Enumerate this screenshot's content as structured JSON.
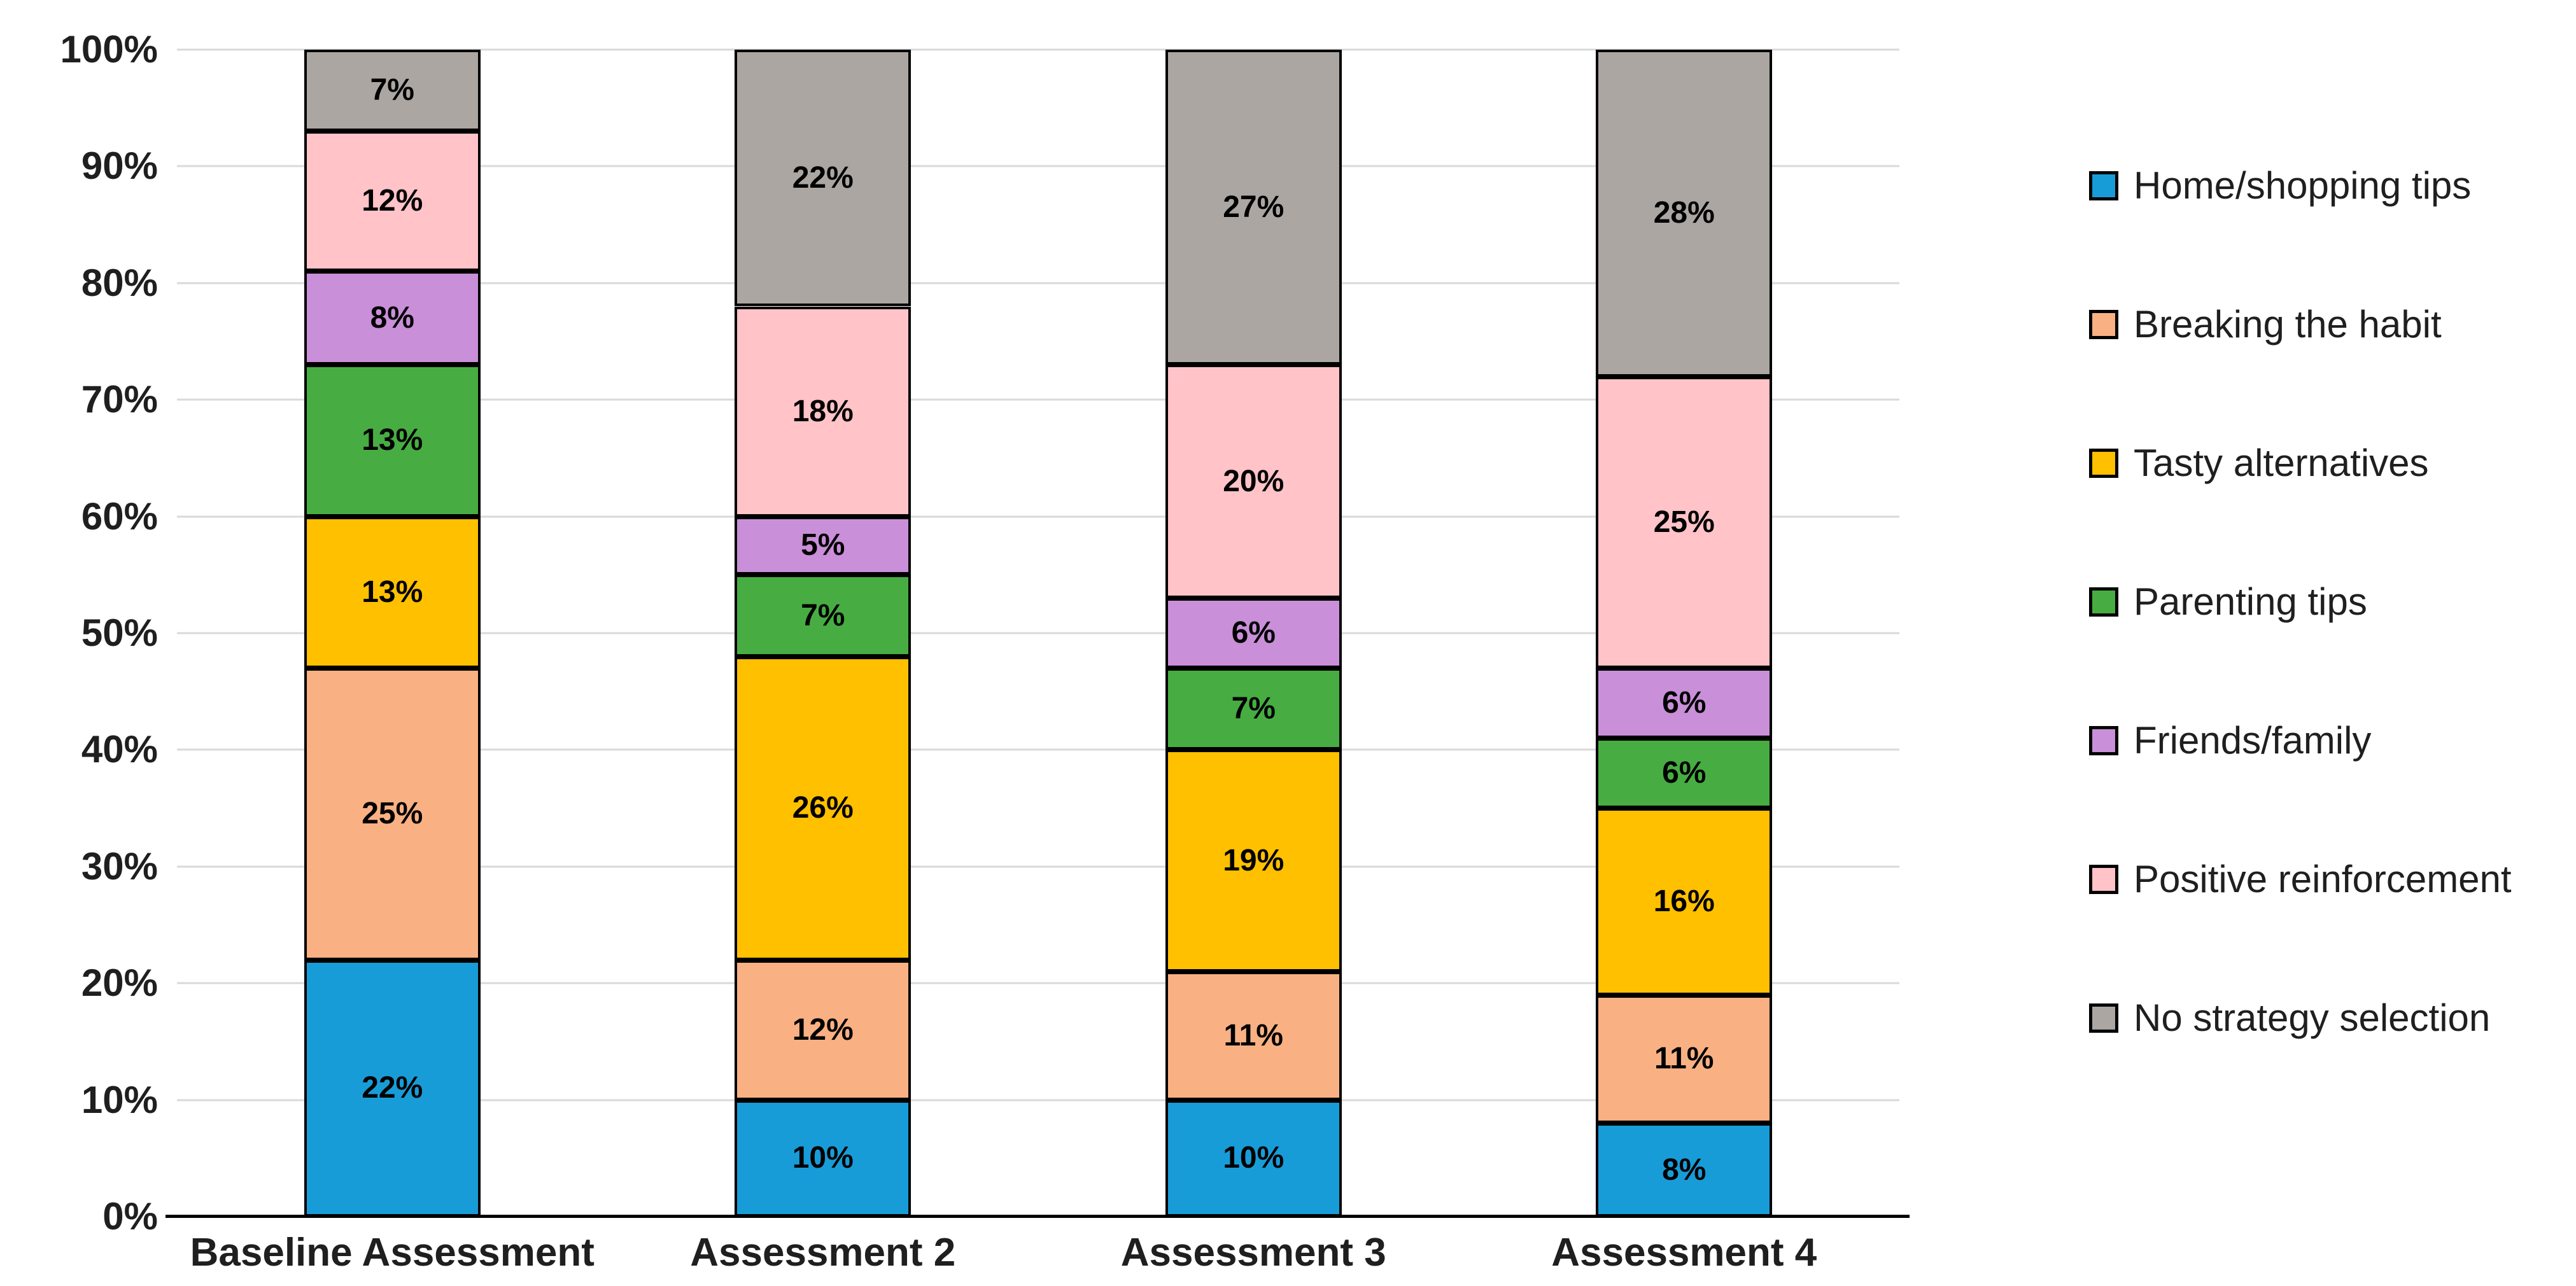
{
  "chart_data": {
    "type": "bar",
    "stacking": "percent",
    "title": "",
    "categories": [
      "Baseline Assessment",
      "Assessment 2",
      "Assessment 3",
      "Assessment 4"
    ],
    "series": [
      {
        "name": "Home/shopping tips",
        "color": "#189CD8",
        "values": [
          22,
          10,
          10,
          8
        ],
        "labels": [
          "22%",
          "10%",
          "10%",
          "8%"
        ]
      },
      {
        "name": "Breaking the habit",
        "color": "#F9B183",
        "values": [
          25,
          12,
          11,
          11
        ],
        "labels": [
          "25%",
          "12%",
          "11%",
          "11%"
        ]
      },
      {
        "name": "Tasty alternatives",
        "color": "#FFC000",
        "values": [
          13,
          26,
          19,
          16
        ],
        "labels": [
          "13%",
          "26%",
          "19%",
          "16%"
        ]
      },
      {
        "name": "Parenting tips",
        "color": "#47AD42",
        "values": [
          13,
          7,
          7,
          6
        ],
        "labels": [
          "13%",
          "7%",
          "7%",
          "6%"
        ]
      },
      {
        "name": "Friends/family",
        "color": "#C98FD9",
        "values": [
          8,
          5,
          6,
          6
        ],
        "labels": [
          "8%",
          "5%",
          "6%",
          "6%"
        ]
      },
      {
        "name": "Positive reinforcement",
        "color": "#FFC3C8",
        "values": [
          12,
          18,
          20,
          25
        ],
        "labels": [
          "12%",
          "18%",
          "20%",
          "25%"
        ]
      },
      {
        "name": "No strategy selection",
        "color": "#ABA6A2",
        "values": [
          7,
          22,
          27,
          28
        ],
        "labels": [
          "7%",
          "22%",
          "27%",
          "28%"
        ]
      }
    ],
    "y_axis": {
      "min": 0,
      "max": 100,
      "tick_step": 10,
      "tick_labels": [
        "0%",
        "10%",
        "20%",
        "30%",
        "40%",
        "50%",
        "60%",
        "70%",
        "80%",
        "90%",
        "100%"
      ]
    },
    "legend": {
      "position": "right"
    },
    "grid": true
  },
  "colors": {
    "background": "#FFFFFF",
    "gridline": "#D9D9D9",
    "axis_line": "#000000",
    "segment_border": "#000000",
    "data_label": "#000000",
    "axis_label": "#1F1F1F",
    "legend_label": "#1F1F1F"
  }
}
